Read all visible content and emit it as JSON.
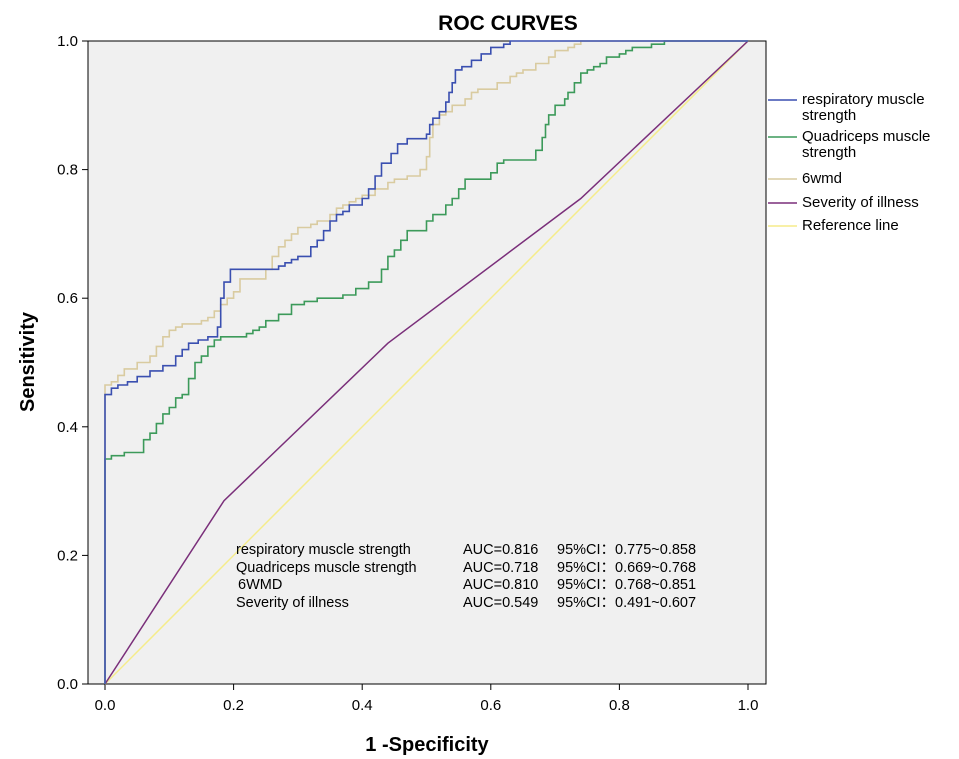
{
  "chart_data": {
    "type": "line",
    "title": "ROC CURVES",
    "xlabel": "1 -Specificity",
    "ylabel": "Sensitivity",
    "xlim": [
      0,
      1
    ],
    "ylim": [
      0,
      1
    ],
    "x_ticks": [
      "0.0",
      "0.2",
      "0.4",
      "0.6",
      "0.8",
      "1.0"
    ],
    "y_ticks": [
      "0.0",
      "0.2",
      "0.4",
      "0.6",
      "0.8",
      "1.0"
    ],
    "grid": false,
    "legend_position": "right",
    "plot_background": "#f0f0f0",
    "series": [
      {
        "name": "respiratory muscle strength",
        "color": "#3a4fb0",
        "step": true,
        "points": [
          [
            0,
            0
          ],
          [
            0,
            0.45
          ],
          [
            0.01,
            0.46
          ],
          [
            0.02,
            0.465
          ],
          [
            0.035,
            0.47
          ],
          [
            0.05,
            0.478
          ],
          [
            0.07,
            0.487
          ],
          [
            0.09,
            0.495
          ],
          [
            0.11,
            0.51
          ],
          [
            0.12,
            0.52
          ],
          [
            0.13,
            0.53
          ],
          [
            0.145,
            0.535
          ],
          [
            0.16,
            0.54
          ],
          [
            0.175,
            0.555
          ],
          [
            0.18,
            0.6
          ],
          [
            0.185,
            0.625
          ],
          [
            0.195,
            0.645
          ],
          [
            0.22,
            0.645
          ],
          [
            0.26,
            0.645
          ],
          [
            0.27,
            0.65
          ],
          [
            0.28,
            0.655
          ],
          [
            0.29,
            0.66
          ],
          [
            0.3,
            0.665
          ],
          [
            0.32,
            0.68
          ],
          [
            0.33,
            0.69
          ],
          [
            0.34,
            0.705
          ],
          [
            0.35,
            0.72
          ],
          [
            0.36,
            0.73
          ],
          [
            0.37,
            0.735
          ],
          [
            0.38,
            0.745
          ],
          [
            0.4,
            0.755
          ],
          [
            0.41,
            0.77
          ],
          [
            0.42,
            0.79
          ],
          [
            0.43,
            0.81
          ],
          [
            0.445,
            0.825
          ],
          [
            0.455,
            0.84
          ],
          [
            0.47,
            0.848
          ],
          [
            0.5,
            0.855
          ],
          [
            0.505,
            0.87
          ],
          [
            0.51,
            0.88
          ],
          [
            0.52,
            0.89
          ],
          [
            0.53,
            0.905
          ],
          [
            0.535,
            0.92
          ],
          [
            0.54,
            0.935
          ],
          [
            0.545,
            0.955
          ],
          [
            0.555,
            0.96
          ],
          [
            0.57,
            0.97
          ],
          [
            0.585,
            0.98
          ],
          [
            0.6,
            0.99
          ],
          [
            0.62,
            0.995
          ],
          [
            0.63,
            1.0
          ],
          [
            1,
            1
          ]
        ]
      },
      {
        "name": "Quadriceps muscle strength",
        "color": "#3c9a5a",
        "step": true,
        "points": [
          [
            0,
            0
          ],
          [
            0,
            0.35
          ],
          [
            0.01,
            0.355
          ],
          [
            0.03,
            0.36
          ],
          [
            0.055,
            0.36
          ],
          [
            0.06,
            0.38
          ],
          [
            0.07,
            0.39
          ],
          [
            0.08,
            0.405
          ],
          [
            0.09,
            0.42
          ],
          [
            0.1,
            0.43
          ],
          [
            0.11,
            0.445
          ],
          [
            0.12,
            0.45
          ],
          [
            0.13,
            0.475
          ],
          [
            0.14,
            0.5
          ],
          [
            0.15,
            0.51
          ],
          [
            0.16,
            0.525
          ],
          [
            0.17,
            0.535
          ],
          [
            0.18,
            0.54
          ],
          [
            0.22,
            0.545
          ],
          [
            0.23,
            0.55
          ],
          [
            0.24,
            0.555
          ],
          [
            0.25,
            0.565
          ],
          [
            0.27,
            0.575
          ],
          [
            0.29,
            0.59
          ],
          [
            0.31,
            0.595
          ],
          [
            0.33,
            0.6
          ],
          [
            0.37,
            0.605
          ],
          [
            0.39,
            0.615
          ],
          [
            0.41,
            0.625
          ],
          [
            0.43,
            0.645
          ],
          [
            0.44,
            0.665
          ],
          [
            0.45,
            0.675
          ],
          [
            0.46,
            0.69
          ],
          [
            0.47,
            0.705
          ],
          [
            0.5,
            0.72
          ],
          [
            0.51,
            0.73
          ],
          [
            0.53,
            0.745
          ],
          [
            0.54,
            0.755
          ],
          [
            0.55,
            0.77
          ],
          [
            0.56,
            0.785
          ],
          [
            0.6,
            0.795
          ],
          [
            0.61,
            0.81
          ],
          [
            0.62,
            0.815
          ],
          [
            0.67,
            0.83
          ],
          [
            0.68,
            0.85
          ],
          [
            0.685,
            0.87
          ],
          [
            0.69,
            0.885
          ],
          [
            0.7,
            0.9
          ],
          [
            0.715,
            0.91
          ],
          [
            0.72,
            0.92
          ],
          [
            0.73,
            0.935
          ],
          [
            0.74,
            0.95
          ],
          [
            0.75,
            0.955
          ],
          [
            0.76,
            0.96
          ],
          [
            0.77,
            0.965
          ],
          [
            0.78,
            0.975
          ],
          [
            0.8,
            0.98
          ],
          [
            0.81,
            0.985
          ],
          [
            0.82,
            0.99
          ],
          [
            0.85,
            0.995
          ],
          [
            0.87,
            1.0
          ],
          [
            1,
            1
          ]
        ]
      },
      {
        "name": "6wmd",
        "color": "#d9cba0",
        "step": true,
        "points": [
          [
            0,
            0
          ],
          [
            0,
            0.465
          ],
          [
            0.01,
            0.47
          ],
          [
            0.02,
            0.48
          ],
          [
            0.03,
            0.49
          ],
          [
            0.05,
            0.5
          ],
          [
            0.07,
            0.51
          ],
          [
            0.08,
            0.525
          ],
          [
            0.09,
            0.54
          ],
          [
            0.1,
            0.55
          ],
          [
            0.11,
            0.555
          ],
          [
            0.12,
            0.56
          ],
          [
            0.15,
            0.565
          ],
          [
            0.16,
            0.57
          ],
          [
            0.17,
            0.58
          ],
          [
            0.18,
            0.59
          ],
          [
            0.19,
            0.6
          ],
          [
            0.2,
            0.61
          ],
          [
            0.21,
            0.63
          ],
          [
            0.25,
            0.645
          ],
          [
            0.26,
            0.665
          ],
          [
            0.27,
            0.68
          ],
          [
            0.28,
            0.69
          ],
          [
            0.29,
            0.7
          ],
          [
            0.3,
            0.71
          ],
          [
            0.32,
            0.715
          ],
          [
            0.33,
            0.72
          ],
          [
            0.35,
            0.73
          ],
          [
            0.36,
            0.74
          ],
          [
            0.37,
            0.745
          ],
          [
            0.38,
            0.75
          ],
          [
            0.39,
            0.755
          ],
          [
            0.4,
            0.76
          ],
          [
            0.42,
            0.77
          ],
          [
            0.44,
            0.78
          ],
          [
            0.45,
            0.785
          ],
          [
            0.47,
            0.79
          ],
          [
            0.49,
            0.8
          ],
          [
            0.5,
            0.82
          ],
          [
            0.505,
            0.85
          ],
          [
            0.51,
            0.87
          ],
          [
            0.52,
            0.885
          ],
          [
            0.53,
            0.89
          ],
          [
            0.54,
            0.9
          ],
          [
            0.56,
            0.91
          ],
          [
            0.57,
            0.92
          ],
          [
            0.58,
            0.925
          ],
          [
            0.61,
            0.935
          ],
          [
            0.63,
            0.945
          ],
          [
            0.64,
            0.95
          ],
          [
            0.65,
            0.955
          ],
          [
            0.67,
            0.965
          ],
          [
            0.69,
            0.975
          ],
          [
            0.7,
            0.985
          ],
          [
            0.72,
            0.99
          ],
          [
            0.73,
            0.995
          ],
          [
            0.74,
            1.0
          ],
          [
            1,
            1
          ]
        ]
      },
      {
        "name": "Severity of illness",
        "color": "#7a2f7a",
        "step": false,
        "points": [
          [
            0,
            0
          ],
          [
            0.185,
            0.285
          ],
          [
            0.44,
            0.53
          ],
          [
            0.74,
            0.755
          ],
          [
            1,
            1
          ]
        ]
      },
      {
        "name": "Reference line",
        "color": "#f5ec8a",
        "step": false,
        "points": [
          [
            0,
            0
          ],
          [
            1,
            1
          ]
        ]
      }
    ],
    "legend": [
      {
        "label": "respiratory muscle strength",
        "color": "#3a4fb0"
      },
      {
        "label": "Quadriceps muscle strength",
        "color": "#3c9a5a"
      },
      {
        "label": "6wmd",
        "color": "#d9cba0"
      },
      {
        "label": "Severity of illness",
        "color": "#7a2f7a"
      },
      {
        "label": "Reference line",
        "color": "#f5ec8a"
      }
    ],
    "annotations": [
      {
        "name": "respiratory muscle strength",
        "auc": "AUC=0.816",
        "ci": "95%CI：0.775~0.858"
      },
      {
        "name": "Quadriceps muscle strength",
        "auc": "AUC=0.718",
        "ci": "95%CI：0.669~0.768"
      },
      {
        "name": "6WMD",
        "auc": "AUC=0.810",
        "ci": "95%CI：0.768~0.851"
      },
      {
        "name": "Severity of illness",
        "auc": "AUC=0.549",
        "ci": "95%CI：0.491~0.607"
      }
    ]
  }
}
